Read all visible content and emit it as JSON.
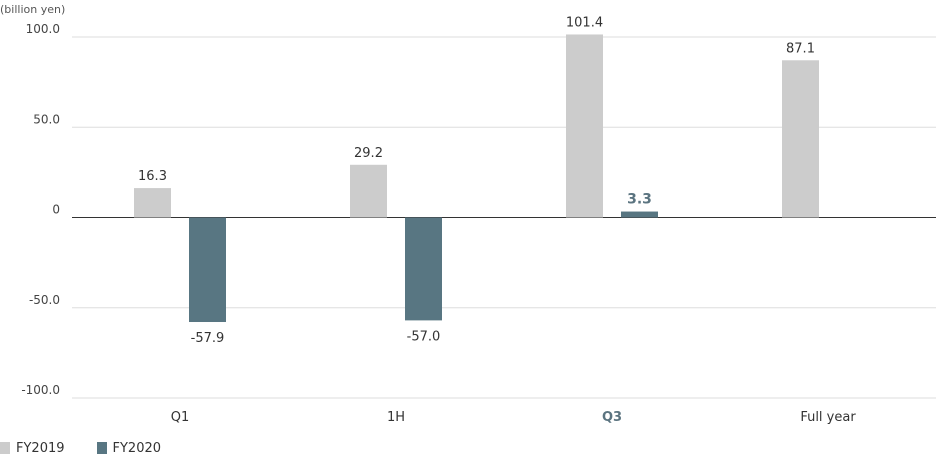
{
  "chart_data": {
    "type": "bar",
    "unit_label": "(billion yen)",
    "categories": [
      "Q1",
      "1H",
      "Q3",
      "Full year"
    ],
    "highlight_category": "Q3",
    "series": [
      {
        "name": "FY2019",
        "color": "#cccccc",
        "values": [
          16.3,
          29.2,
          101.4,
          87.1
        ],
        "labels": [
          "16.3",
          "29.2",
          "101.4",
          "87.1"
        ]
      },
      {
        "name": "FY2020",
        "color": "#587682",
        "values": [
          -57.9,
          -57.0,
          3.3,
          null
        ],
        "labels": [
          "-57.9",
          "-57.0",
          "3.3",
          null
        ]
      }
    ],
    "ylim": [
      -100,
      100
    ],
    "yticks": [
      100,
      50,
      0,
      -50,
      -100
    ],
    "ytick_labels": [
      "100.0",
      "50.0",
      "0",
      "-50.0",
      "-100.0"
    ],
    "grid": true,
    "legend_position": "bottom-left"
  }
}
